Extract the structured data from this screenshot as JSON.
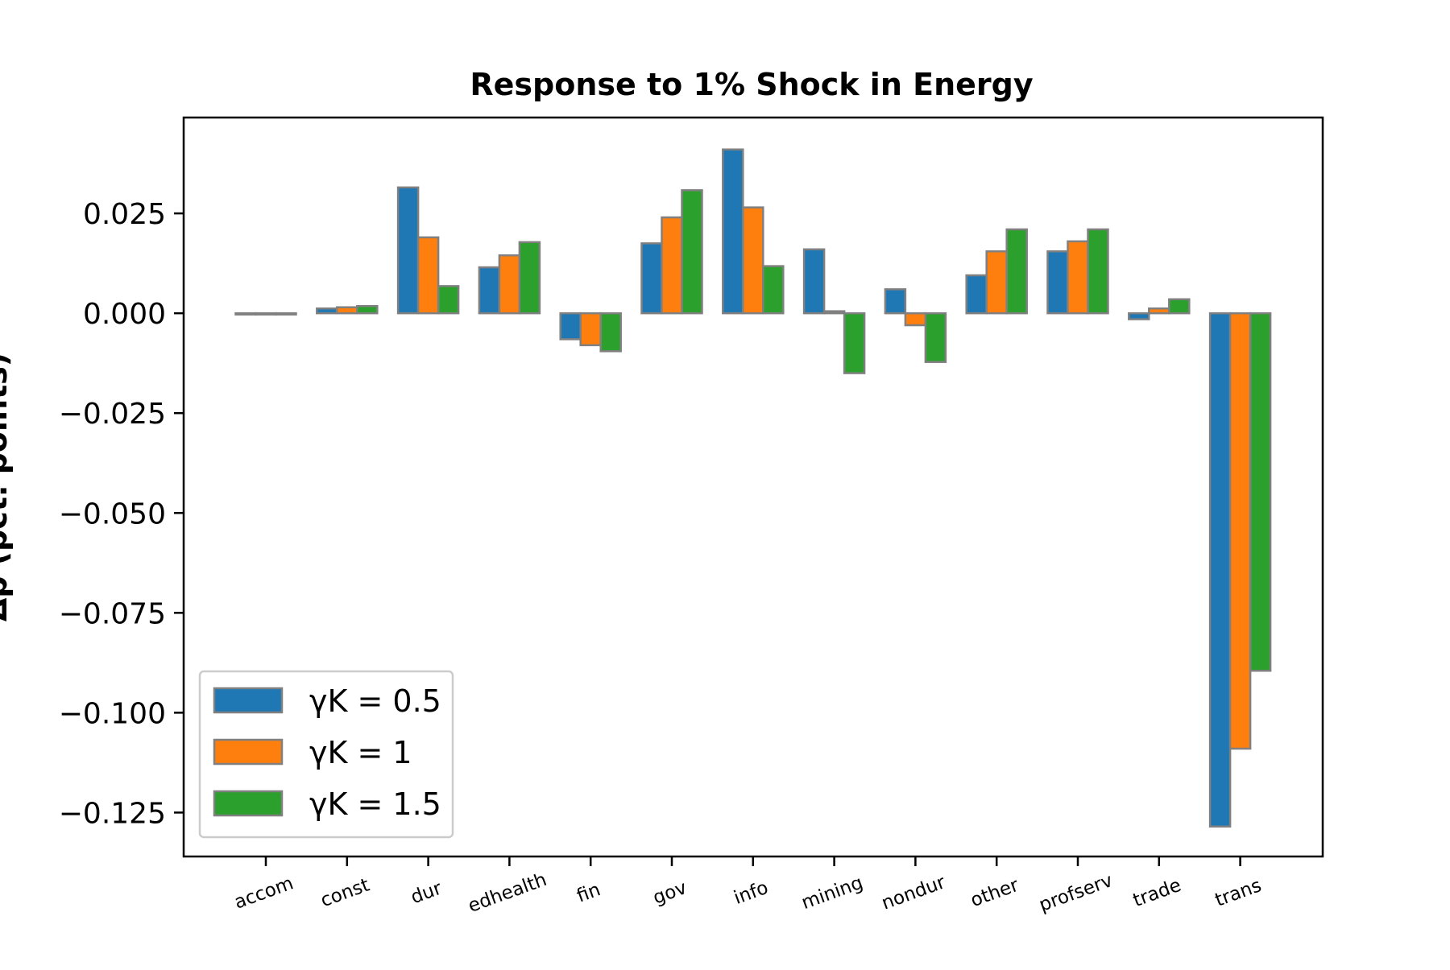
{
  "chart_data": {
    "type": "bar",
    "title": "Response to 1% Shock in Energy",
    "ylabel": "Δp (pct. points)",
    "xlabel": "",
    "categories": [
      "accom",
      "const",
      "dur",
      "edhealth",
      "fin",
      "gov",
      "info",
      "mining",
      "nondur",
      "other",
      "profserv",
      "trade",
      "trans"
    ],
    "series": [
      {
        "name": "γK = 0.5",
        "color": "#1f77b4",
        "values": [
          0.0,
          0.0012,
          0.0315,
          0.0115,
          -0.0065,
          0.0175,
          0.041,
          0.016,
          0.006,
          0.0095,
          0.0155,
          -0.0015,
          -0.1285
        ]
      },
      {
        "name": "γK = 1",
        "color": "#ff7f0e",
        "values": [
          0.0,
          0.0015,
          0.019,
          0.0145,
          -0.008,
          0.024,
          0.0265,
          0.0005,
          -0.003,
          0.0155,
          0.018,
          0.0012,
          -0.109
        ]
      },
      {
        "name": "γK = 1.5",
        "color": "#2ca02c",
        "values": [
          0.0,
          0.0018,
          0.0068,
          0.0178,
          -0.0095,
          0.0308,
          0.0118,
          -0.015,
          -0.0122,
          0.021,
          0.021,
          0.0035,
          -0.0895
        ]
      }
    ],
    "yticks": [
      "0.025",
      "0.000",
      "−0.025",
      "−0.050",
      "−0.075",
      "−0.100",
      "−0.125"
    ],
    "ytick_values": [
      0.025,
      0.0,
      -0.025,
      -0.05,
      -0.075,
      -0.1,
      -0.125
    ],
    "ylim": [
      -0.136,
      0.049
    ],
    "grid": false,
    "legend_position": "lower-left",
    "bar_edge_color": "#808080"
  }
}
